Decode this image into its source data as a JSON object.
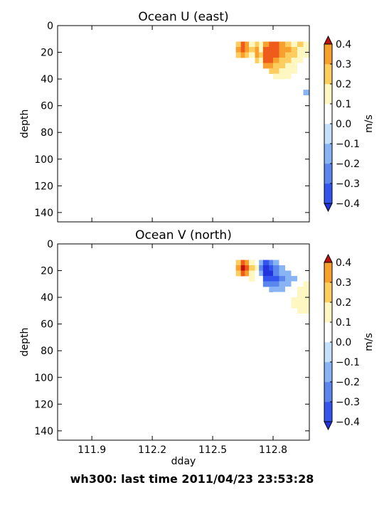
{
  "footer_title": "wh300: last time 2011/04/23 23:53:28",
  "color_scale": {
    "levels": [
      -0.4,
      -0.3,
      -0.2,
      -0.1,
      0.0,
      0.1,
      0.2,
      0.3,
      0.4
    ],
    "colors": [
      "#3355ee",
      "#5b86ee",
      "#89b4f4",
      "#c4e0fb",
      "#ffffff",
      "#fff7c2",
      "#fccd5f",
      "#f8a02d",
      "#ee5b1a"
    ],
    "under_color": "#2233dd",
    "over_color": "#c01010",
    "tick_labels": [
      "−0.4",
      "−0.3",
      "−0.2",
      "−0.1",
      "0.0",
      "0.1",
      "0.2",
      "0.3",
      "0.4"
    ],
    "unit_label": "m/s"
  },
  "chart_data": [
    {
      "type": "heatmap",
      "title": "Ocean U (east)",
      "xlabel": "",
      "ylabel": "depth",
      "xlim": [
        111.73,
        112.98
      ],
      "ylim": [
        147,
        0
      ],
      "x_ticks": [
        111.9,
        112.2,
        112.5,
        112.8
      ],
      "x_tick_labels_shown": false,
      "y_ticks": [
        0,
        20,
        40,
        60,
        80,
        100,
        120,
        140
      ],
      "depth_bins": [
        12,
        16,
        20,
        24,
        28,
        32,
        36,
        40,
        44,
        48
      ],
      "columns": [
        {
          "x0": 112.6,
          "x1": 112.615,
          "max_depth": 20,
          "v": [
            -0.05,
            -0.05
          ]
        },
        {
          "x0": 112.615,
          "x1": 112.64,
          "max_depth": 24,
          "v": [
            0.15,
            0.2,
            0.15
          ]
        },
        {
          "x0": 112.64,
          "x1": 112.66,
          "max_depth": 24,
          "v": [
            0.3,
            0.35,
            0.25
          ]
        },
        {
          "x0": 112.66,
          "x1": 112.68,
          "max_depth": 24,
          "v": [
            0.25,
            0.2,
            0.15
          ]
        },
        {
          "x0": 112.68,
          "x1": 112.71,
          "max_depth": 24,
          "v": [
            0.05,
            0.15,
            0.05
          ]
        },
        {
          "x0": 112.71,
          "x1": 112.73,
          "max_depth": 28,
          "v": [
            0.15,
            0.2,
            0.25,
            0.15
          ]
        },
        {
          "x0": 112.73,
          "x1": 112.75,
          "max_depth": 28,
          "v": [
            0.05,
            0.05,
            0.15,
            0.05
          ]
        },
        {
          "x0": 112.75,
          "x1": 112.78,
          "max_depth": 32,
          "v": [
            0.25,
            0.35,
            0.35,
            0.3,
            0.25
          ]
        },
        {
          "x0": 112.78,
          "x1": 112.8,
          "max_depth": 36,
          "v": [
            0.3,
            0.35,
            0.35,
            0.3,
            0.25,
            0.15
          ]
        },
        {
          "x0": 112.8,
          "x1": 112.83,
          "max_depth": 40,
          "v": [
            0.3,
            0.35,
            0.3,
            0.25,
            0.15,
            0.1,
            0.05
          ]
        },
        {
          "x0": 112.83,
          "x1": 112.86,
          "max_depth": 40,
          "v": [
            0.25,
            0.25,
            0.2,
            0.15,
            0.15,
            0.05,
            0.05
          ]
        },
        {
          "x0": 112.86,
          "x1": 112.89,
          "max_depth": 44,
          "v": [
            0.15,
            0.2,
            0.15,
            0.15,
            0.05,
            0.05,
            0.05,
            -0.05
          ]
        },
        {
          "x0": 112.89,
          "x1": 112.92,
          "max_depth": 48,
          "v": [
            0.05,
            0.15,
            0.1,
            0.05,
            0.05,
            0.05,
            -0.05,
            -0.05,
            -0.05
          ]
        },
        {
          "x0": 112.92,
          "x1": 112.95,
          "max_depth": 48,
          "v": [
            0.15,
            0.05,
            0.05,
            0.05,
            -0.05,
            -0.05,
            -0.05,
            -0.05,
            -0.05
          ]
        },
        {
          "x0": 112.95,
          "x1": 112.98,
          "max_depth": 52,
          "v": [
            0.05,
            0.05,
            0.05,
            -0.05,
            -0.05,
            -0.05,
            -0.05,
            -0.05,
            -0.05,
            -0.15
          ]
        }
      ]
    },
    {
      "type": "heatmap",
      "title": "Ocean V (north)",
      "xlabel": "dday",
      "ylabel": "depth",
      "xlim": [
        111.73,
        112.98
      ],
      "ylim": [
        147,
        0
      ],
      "x_ticks": [
        111.9,
        112.2,
        112.5,
        112.8
      ],
      "x_tick_labels_shown": true,
      "y_ticks": [
        0,
        20,
        40,
        60,
        80,
        100,
        120,
        140
      ],
      "depth_bins": [
        12,
        16,
        20,
        24,
        28,
        32,
        36,
        40,
        44,
        48
      ],
      "columns": [
        {
          "x0": 112.6,
          "x1": 112.615,
          "max_depth": 20,
          "v": [
            -0.05,
            -0.05
          ]
        },
        {
          "x0": 112.615,
          "x1": 112.64,
          "max_depth": 24,
          "v": [
            0.15,
            0.25,
            0.15
          ]
        },
        {
          "x0": 112.64,
          "x1": 112.66,
          "max_depth": 24,
          "v": [
            0.3,
            0.45,
            0.35
          ]
        },
        {
          "x0": 112.66,
          "x1": 112.68,
          "max_depth": 24,
          "v": [
            0.25,
            0.35,
            0.25
          ]
        },
        {
          "x0": 112.68,
          "x1": 112.71,
          "max_depth": 28,
          "v": [
            0.05,
            0.15,
            0.05,
            0.05
          ]
        },
        {
          "x0": 112.71,
          "x1": 112.73,
          "max_depth": 28,
          "v": [
            -0.05,
            0.05,
            -0.05,
            -0.05
          ]
        },
        {
          "x0": 112.73,
          "x1": 112.75,
          "max_depth": 28,
          "v": [
            -0.15,
            -0.25,
            -0.15,
            -0.05
          ]
        },
        {
          "x0": 112.75,
          "x1": 112.78,
          "max_depth": 32,
          "v": [
            -0.35,
            -0.45,
            -0.45,
            -0.35,
            -0.25
          ]
        },
        {
          "x0": 112.78,
          "x1": 112.8,
          "max_depth": 36,
          "v": [
            -0.25,
            -0.35,
            -0.45,
            -0.35,
            -0.25,
            -0.15
          ]
        },
        {
          "x0": 112.8,
          "x1": 112.83,
          "max_depth": 40,
          "v": [
            -0.15,
            -0.25,
            -0.25,
            -0.35,
            -0.25,
            -0.15,
            -0.05
          ]
        },
        {
          "x0": 112.83,
          "x1": 112.86,
          "max_depth": 44,
          "v": [
            -0.05,
            -0.15,
            -0.15,
            -0.25,
            -0.15,
            -0.15,
            -0.05,
            -0.05
          ]
        },
        {
          "x0": 112.86,
          "x1": 112.89,
          "max_depth": 44,
          "v": [
            -0.05,
            -0.05,
            -0.15,
            -0.15,
            -0.15,
            -0.05,
            -0.05,
            -0.05
          ]
        },
        {
          "x0": 112.89,
          "x1": 112.92,
          "max_depth": 48,
          "v": [
            -0.05,
            -0.05,
            -0.05,
            -0.15,
            -0.05,
            -0.05,
            -0.05,
            0.05,
            0.05
          ]
        },
        {
          "x0": 112.92,
          "x1": 112.95,
          "max_depth": 52,
          "v": [
            -0.05,
            -0.05,
            -0.05,
            -0.05,
            -0.05,
            0.05,
            0.05,
            0.05,
            0.05,
            0.05
          ]
        },
        {
          "x0": 112.95,
          "x1": 112.98,
          "max_depth": 52,
          "v": [
            -0.05,
            -0.05,
            -0.05,
            -0.05,
            0.05,
            0.05,
            0.05,
            0.05,
            0.05,
            0.05
          ]
        }
      ]
    }
  ]
}
